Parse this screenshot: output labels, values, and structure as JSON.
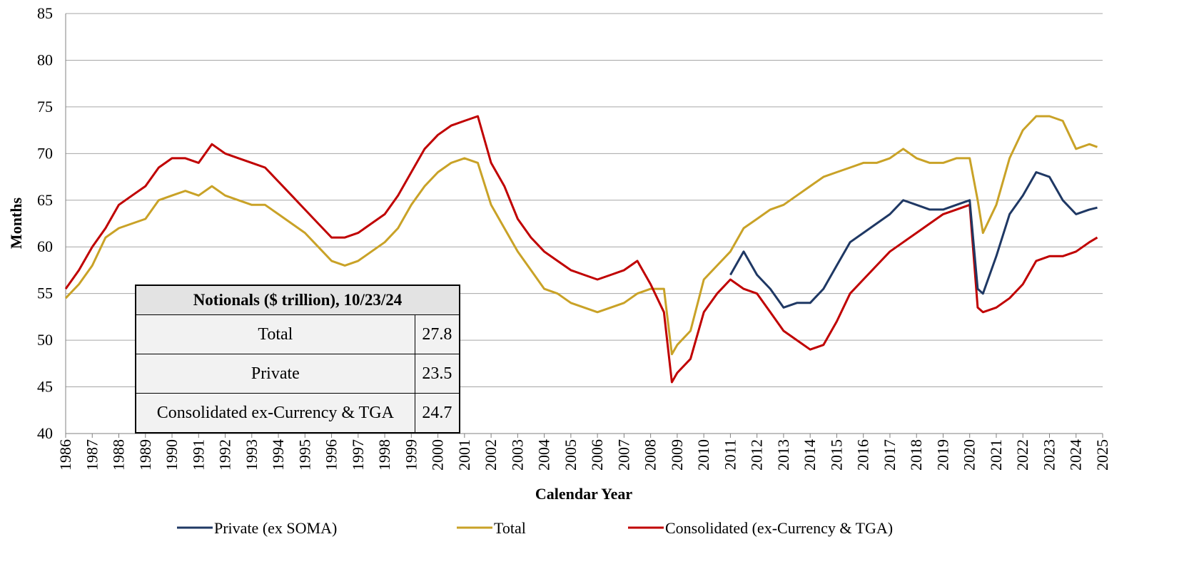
{
  "chart_data": {
    "type": "line",
    "xlabel": "Calendar Year",
    "ylabel": "Months",
    "xlim": [
      1986,
      2025
    ],
    "ylim": [
      40,
      85
    ],
    "xticks": [
      1986,
      1987,
      1988,
      1989,
      1990,
      1991,
      1992,
      1993,
      1994,
      1995,
      1996,
      1997,
      1998,
      1999,
      2000,
      2001,
      2002,
      2003,
      2004,
      2005,
      2006,
      2007,
      2008,
      2009,
      2010,
      2011,
      2012,
      2013,
      2014,
      2015,
      2016,
      2017,
      2018,
      2019,
      2020,
      2021,
      2022,
      2023,
      2024,
      2025
    ],
    "yticks": [
      40,
      45,
      50,
      55,
      60,
      65,
      70,
      75,
      80,
      85
    ],
    "grid": true,
    "legend": "bottom",
    "x": [
      1986,
      1986.5,
      1987,
      1987.5,
      1988,
      1988.5,
      1989,
      1989.5,
      1990,
      1990.5,
      1991,
      1991.5,
      1992,
      1992.5,
      1993,
      1993.5,
      1994,
      1994.5,
      1995,
      1995.5,
      1996,
      1996.5,
      1997,
      1997.5,
      1998,
      1998.5,
      1999,
      1999.5,
      2000,
      2000.5,
      2001,
      2001.5,
      2002,
      2002.5,
      2003,
      2003.5,
      2004,
      2004.5,
      2005,
      2005.5,
      2006,
      2006.5,
      2007,
      2007.5,
      2008,
      2008.5,
      2008.8,
      2009,
      2009.5,
      2010,
      2010.5,
      2011,
      2011.5,
      2012,
      2012.5,
      2013,
      2013.5,
      2014,
      2014.5,
      2015,
      2015.5,
      2016,
      2016.5,
      2017,
      2017.5,
      2018,
      2018.5,
      2019,
      2019.5,
      2020,
      2020.3,
      2020.5,
      2021,
      2021.5,
      2022,
      2022.5,
      2023,
      2023.5,
      2024,
      2024.5,
      2024.8
    ],
    "series": [
      {
        "name": "Private (ex SOMA)",
        "color": "#1f3864",
        "values": [
          null,
          null,
          null,
          null,
          null,
          null,
          null,
          null,
          null,
          null,
          null,
          null,
          null,
          null,
          null,
          null,
          null,
          null,
          null,
          null,
          null,
          null,
          null,
          null,
          null,
          null,
          null,
          null,
          null,
          null,
          null,
          null,
          null,
          null,
          null,
          null,
          null,
          null,
          null,
          null,
          null,
          null,
          null,
          null,
          null,
          null,
          null,
          null,
          null,
          null,
          null,
          57,
          59.5,
          57,
          55.5,
          53.5,
          54,
          54,
          55.5,
          58,
          60.5,
          61.5,
          62.5,
          63.5,
          65,
          64.5,
          64,
          64,
          64.5,
          65,
          55.5,
          55,
          59,
          63.5,
          65.5,
          68,
          67.5,
          65,
          63.5,
          64,
          64.2
        ]
      },
      {
        "name": "Total",
        "color": "#c9a227",
        "values": [
          54.5,
          56,
          58,
          61,
          62,
          62.5,
          63,
          65,
          65.5,
          66,
          65.5,
          66.5,
          65.5,
          65,
          64.5,
          64.5,
          63.5,
          62.5,
          61.5,
          60,
          58.5,
          58,
          58.5,
          59.5,
          60.5,
          62,
          64.5,
          66.5,
          68,
          69,
          69.5,
          69,
          64.5,
          62,
          59.5,
          57.5,
          55.5,
          55,
          54,
          53.5,
          53,
          53.5,
          54,
          55,
          55.5,
          55.5,
          48.5,
          49.5,
          51,
          56.5,
          58,
          59.5,
          62,
          63,
          64,
          64.5,
          65.5,
          66.5,
          67.5,
          68,
          68.5,
          69,
          69,
          69.5,
          70.5,
          69.5,
          69,
          69,
          69.5,
          69.5,
          65,
          61.5,
          64.5,
          69.5,
          72.5,
          74,
          74,
          73.5,
          70.5,
          71,
          70.7
        ]
      },
      {
        "name": "Consolidated (ex-Currency & TGA)",
        "color": "#c00000",
        "values": [
          55.5,
          57.5,
          60,
          62,
          64.5,
          65.5,
          66.5,
          68.5,
          69.5,
          69.5,
          69,
          71,
          70,
          69.5,
          69,
          68.5,
          67,
          65.5,
          64,
          62.5,
          61,
          61,
          61.5,
          62.5,
          63.5,
          65.5,
          68,
          70.5,
          72,
          73,
          73.5,
          74,
          69,
          66.5,
          63,
          61,
          59.5,
          58.5,
          57.5,
          57,
          56.5,
          57,
          57.5,
          58.5,
          56,
          53,
          45.5,
          46.5,
          48,
          53,
          55,
          56.5,
          55.5,
          55,
          53,
          51,
          50,
          49,
          49.5,
          52,
          55,
          56.5,
          58,
          59.5,
          60.5,
          61.5,
          62.5,
          63.5,
          64,
          64.5,
          53.5,
          53,
          53.5,
          54.5,
          56,
          58.5,
          59,
          59,
          59.5,
          60.5,
          61
        ]
      }
    ],
    "inset_table": {
      "title": "Notionals ($ trillion), 10/23/24",
      "rows": [
        [
          "Total",
          27.8
        ],
        [
          "Private",
          23.5
        ],
        [
          "Consolidated ex-Currency & TGA",
          24.7
        ]
      ]
    }
  }
}
